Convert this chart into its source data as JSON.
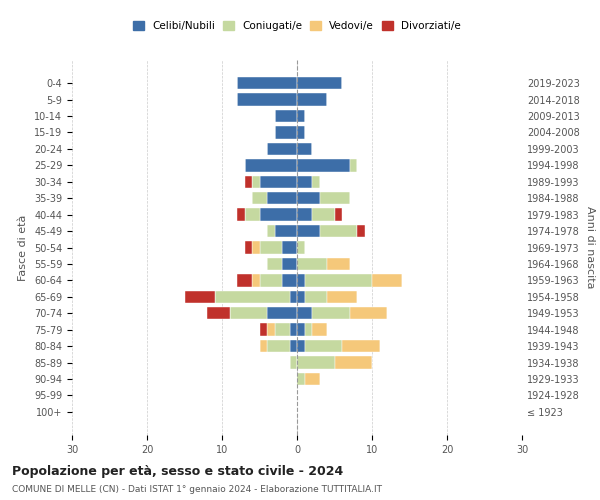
{
  "age_groups": [
    "100+",
    "95-99",
    "90-94",
    "85-89",
    "80-84",
    "75-79",
    "70-74",
    "65-69",
    "60-64",
    "55-59",
    "50-54",
    "45-49",
    "40-44",
    "35-39",
    "30-34",
    "25-29",
    "20-24",
    "15-19",
    "10-14",
    "5-9",
    "0-4"
  ],
  "birth_years": [
    "≤ 1923",
    "1924-1928",
    "1929-1933",
    "1934-1938",
    "1939-1943",
    "1944-1948",
    "1949-1953",
    "1954-1958",
    "1959-1963",
    "1964-1968",
    "1969-1973",
    "1974-1978",
    "1979-1983",
    "1984-1988",
    "1989-1993",
    "1994-1998",
    "1999-2003",
    "2004-2008",
    "2009-2013",
    "2014-2018",
    "2019-2023"
  ],
  "colors": {
    "celibe": "#3d6ea8",
    "coniugato": "#c5d9a0",
    "vedovo": "#f5c87a",
    "divorziato": "#c0312b"
  },
  "males": {
    "celibe": [
      0,
      0,
      0,
      0,
      1,
      1,
      4,
      1,
      2,
      2,
      2,
      3,
      5,
      4,
      5,
      7,
      4,
      3,
      3,
      8,
      8
    ],
    "coniugato": [
      0,
      0,
      0,
      1,
      3,
      2,
      5,
      10,
      3,
      2,
      3,
      1,
      2,
      2,
      1,
      0,
      0,
      0,
      0,
      0,
      0
    ],
    "vedovo": [
      0,
      0,
      0,
      0,
      1,
      1,
      0,
      0,
      1,
      0,
      1,
      0,
      0,
      0,
      0,
      0,
      0,
      0,
      0,
      0,
      0
    ],
    "divorziato": [
      0,
      0,
      0,
      0,
      0,
      1,
      3,
      4,
      2,
      0,
      1,
      0,
      1,
      0,
      1,
      0,
      0,
      0,
      0,
      0,
      0
    ]
  },
  "females": {
    "nubile": [
      0,
      0,
      0,
      0,
      1,
      1,
      2,
      1,
      1,
      0,
      0,
      3,
      2,
      3,
      2,
      7,
      2,
      1,
      1,
      4,
      6
    ],
    "coniugata": [
      0,
      0,
      1,
      5,
      5,
      1,
      5,
      3,
      9,
      4,
      1,
      5,
      3,
      4,
      1,
      1,
      0,
      0,
      0,
      0,
      0
    ],
    "vedova": [
      0,
      0,
      2,
      5,
      5,
      2,
      5,
      4,
      4,
      3,
      0,
      0,
      0,
      0,
      0,
      0,
      0,
      0,
      0,
      0,
      0
    ],
    "divorziata": [
      0,
      0,
      0,
      0,
      0,
      0,
      0,
      0,
      0,
      0,
      0,
      1,
      1,
      0,
      0,
      0,
      0,
      0,
      0,
      0,
      0
    ]
  },
  "xlim": [
    -30,
    30
  ],
  "title": "Popolazione per età, sesso e stato civile - 2024",
  "subtitle": "COMUNE DI MELLE (CN) - Dati ISTAT 1° gennaio 2024 - Elaborazione TUTTITALIA.IT",
  "ylabel_left": "Fasce di età",
  "ylabel_right": "Anni di nascita",
  "xticks": [
    -30,
    -20,
    -10,
    0,
    10,
    20,
    30
  ],
  "xticklabels": [
    "30",
    "20",
    "10",
    "0",
    "10",
    "20",
    "30"
  ],
  "legend_labels": [
    "Celibi/Nubili",
    "Coniugati/e",
    "Vedovi/e",
    "Divorziati/e"
  ],
  "background_color": "#ffffff"
}
